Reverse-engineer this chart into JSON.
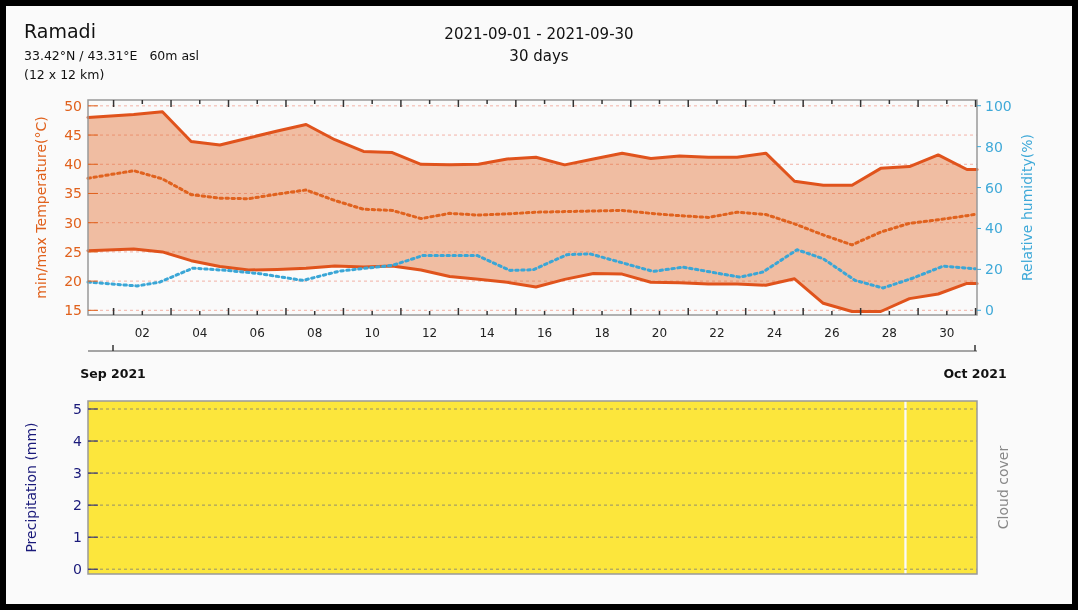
{
  "chart_data": [
    {
      "type": "line",
      "title": "Ramadi",
      "subtitle": "33.42°N / 43.31°E   60m asl",
      "ylabel": "min/max Temperature(°C)",
      "y2label": "Relative humidity(%)",
      "annotations": [
        "(12 x 12 km)",
        "2021-09-01 - 2021-09-30",
        "30 days",
        "Sep 2021",
        "Oct 2021"
      ],
      "xlim": [
        0.11,
        31.05
      ],
      "ylim": [
        14.2,
        51
      ],
      "y2lim": [
        -2.3,
        102.8
      ],
      "xticks": [
        {
          "value": 1,
          "label": null
        },
        {
          "value": 2,
          "label": "02"
        },
        {
          "value": 3,
          "label": null
        },
        {
          "value": 4,
          "label": "04"
        },
        {
          "value": 5,
          "label": null
        },
        {
          "value": 6,
          "label": "06"
        },
        {
          "value": 7,
          "label": null
        },
        {
          "value": 8,
          "label": "08"
        },
        {
          "value": 9,
          "label": null
        },
        {
          "value": 10,
          "label": "10"
        },
        {
          "value": 11,
          "label": null
        },
        {
          "value": 12,
          "label": "12"
        },
        {
          "value": 13,
          "label": null
        },
        {
          "value": 14,
          "label": "14"
        },
        {
          "value": 15,
          "label": null
        },
        {
          "value": 16,
          "label": "16"
        },
        {
          "value": 17,
          "label": null
        },
        {
          "value": 18,
          "label": "18"
        },
        {
          "value": 19,
          "label": null
        },
        {
          "value": 20,
          "label": "20"
        },
        {
          "value": 21,
          "label": null
        },
        {
          "value": 22,
          "label": "22"
        },
        {
          "value": 23,
          "label": null
        },
        {
          "value": 24,
          "label": "24"
        },
        {
          "value": 25,
          "label": null
        },
        {
          "value": 26,
          "label": "26"
        },
        {
          "value": 27,
          "label": null
        },
        {
          "value": 28,
          "label": "28"
        },
        {
          "value": 29,
          "label": null
        },
        {
          "value": 30,
          "label": "30"
        },
        {
          "value": 31,
          "label": null
        }
      ],
      "yticks": [
        15,
        20,
        25,
        30,
        35,
        40,
        45,
        50
      ],
      "y2ticks": [
        0,
        20,
        40,
        60,
        80,
        100
      ],
      "grid": "y",
      "marker": "none",
      "series": [
        {
          "color": "#e0621e",
          "line_style": "dotted",
          "x": [
            0.11,
            1.7,
            2.7,
            3.7,
            4.7,
            5.7,
            6.7,
            7.7,
            8.7,
            9.7,
            10.7,
            11.7,
            12.7,
            13.7,
            14.7,
            15.7,
            16.7,
            17.7,
            18.7,
            19.7,
            20.7,
            21.7,
            22.7,
            23.7,
            24.7,
            25.7,
            26.7,
            27.7,
            28.7,
            29.7,
            30.7,
            31.05
          ],
          "values": [
            37.6,
            38.9,
            37.5,
            34.8,
            34.2,
            34.1,
            34.9,
            35.6,
            33.8,
            32.3,
            32.1,
            30.7,
            31.6,
            31.3,
            31.5,
            31.8,
            31.9,
            32.0,
            32.1,
            31.6,
            31.2,
            30.9,
            31.8,
            31.4,
            29.8,
            27.9,
            26.2,
            28.4,
            29.9,
            30.5,
            31.2,
            31.5
          ],
          "lower": [
            25.2,
            25.5,
            25.0,
            23.5,
            22.5,
            21.9,
            22.0,
            22.2,
            22.6,
            22.4,
            22.6,
            21.9,
            20.8,
            20.3,
            19.8,
            19.0,
            20.3,
            21.3,
            21.2,
            19.8,
            19.7,
            19.5,
            19.5,
            19.3,
            20.4,
            16.2,
            14.8,
            14.8,
            17.0,
            17.8,
            19.6,
            19.6
          ],
          "upper": [
            48.0,
            48.5,
            49.0,
            43.9,
            43.3,
            44.5,
            45.7,
            46.8,
            44.2,
            42.2,
            42.0,
            40.0,
            39.9,
            40.0,
            40.9,
            41.2,
            39.9,
            40.9,
            41.9,
            41.0,
            41.4,
            41.2,
            41.2,
            41.9,
            37.1,
            36.4,
            36.4,
            39.3,
            39.6,
            41.6,
            39.1,
            39.1
          ]
        },
        {
          "color": "#e0531c",
          "line_style": "solid",
          "x": [
            0.11,
            1.7,
            2.7,
            3.7,
            4.7,
            5.7,
            6.7,
            7.7,
            8.7,
            9.7,
            10.7,
            11.7,
            12.7,
            13.7,
            14.7,
            15.7,
            16.7,
            17.7,
            18.7,
            19.7,
            20.7,
            21.7,
            22.7,
            23.7,
            24.7,
            25.7,
            26.7,
            27.7,
            28.7,
            29.7,
            30.7,
            31.05
          ],
          "values": [
            48.0,
            48.5,
            49.0,
            43.9,
            43.3,
            44.5,
            45.7,
            46.8,
            44.2,
            42.2,
            42.0,
            40.0,
            39.9,
            40.0,
            40.9,
            41.2,
            39.9,
            40.9,
            41.9,
            41.0,
            41.4,
            41.2,
            41.2,
            41.9,
            37.1,
            36.4,
            36.4,
            39.3,
            39.6,
            41.6,
            39.1,
            39.1
          ]
        },
        {
          "color": "#e0531c",
          "line_style": "solid",
          "x": [
            0.11,
            1.7,
            2.7,
            3.7,
            4.7,
            5.7,
            6.7,
            7.7,
            8.7,
            9.7,
            10.7,
            11.7,
            12.7,
            13.7,
            14.7,
            15.7,
            16.7,
            17.7,
            18.7,
            19.7,
            20.7,
            21.7,
            22.7,
            23.7,
            24.7,
            25.7,
            26.7,
            27.7,
            28.7,
            29.7,
            30.7,
            31.05
          ],
          "values": [
            25.2,
            25.5,
            25.0,
            23.5,
            22.5,
            21.9,
            22.0,
            22.2,
            22.6,
            22.4,
            22.6,
            21.9,
            20.8,
            20.3,
            19.8,
            19.0,
            20.3,
            21.3,
            21.2,
            19.8,
            19.7,
            19.5,
            19.5,
            19.3,
            20.4,
            16.2,
            14.8,
            14.8,
            17.0,
            17.8,
            19.6,
            19.6
          ]
        },
        {
          "color": "#3aa6d6",
          "line_style": "dotted",
          "axis": "y2",
          "x": [
            0.11,
            1.81,
            2.61,
            3.76,
            4.95,
            6.09,
            7.59,
            8.88,
            10.72,
            11.77,
            13.65,
            14.8,
            15.6,
            16.78,
            17.58,
            19.78,
            20.82,
            22.8,
            23.6,
            24.79,
            25.7,
            26.81,
            27.78,
            28.83,
            29.87,
            30.99
          ],
          "values": [
            13.8,
            11.9,
            13.8,
            20.6,
            19.5,
            17.9,
            14.6,
            19.2,
            22.0,
            26.8,
            26.8,
            19.5,
            19.8,
            27.2,
            27.6,
            19.0,
            21.1,
            16.2,
            18.7,
            29.6,
            25.2,
            14.6,
            10.9,
            15.8,
            21.6,
            20.3
          ]
        }
      ]
    },
    {
      "type": "bar",
      "ylabel": "Precipitation (mm)",
      "y2label": "Cloud cover",
      "xlim": [
        0.11,
        31.05
      ],
      "ylim": [
        -0.15,
        5.25
      ],
      "yticks": [
        0,
        1,
        2,
        3,
        4,
        5
      ],
      "grid": "y",
      "tick_labels": "y",
      "bands": [
        {
          "axis": "x",
          "from": 0.11,
          "to": 28.52,
          "color": "#fce63c"
        },
        {
          "axis": "x",
          "from": 28.6,
          "to": 31.05,
          "color": "#fce63c"
        }
      ]
    }
  ]
}
